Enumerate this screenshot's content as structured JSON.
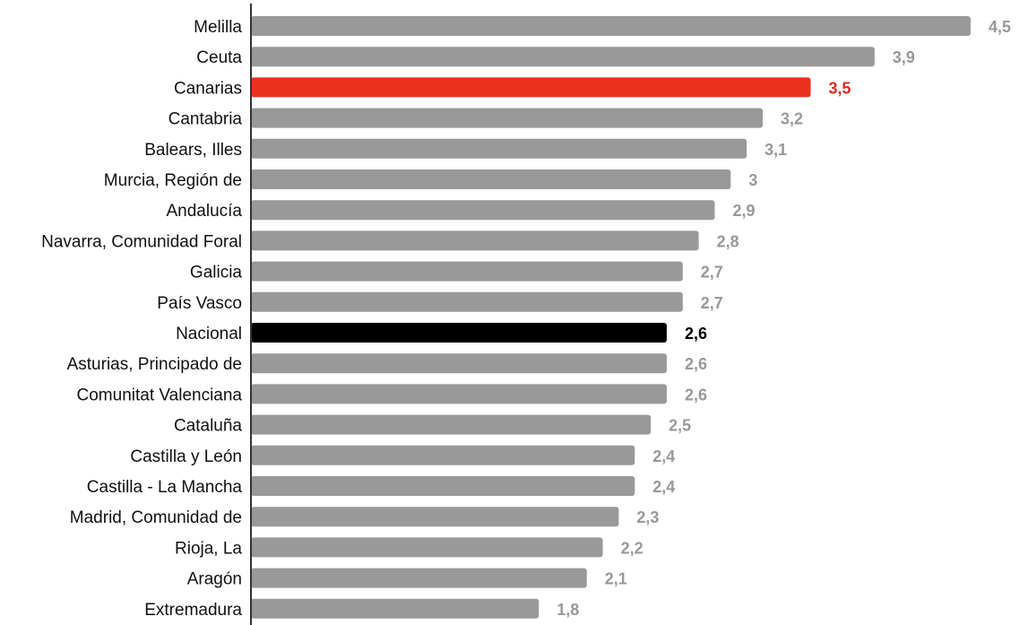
{
  "chart_data": {
    "type": "bar",
    "orientation": "horizontal",
    "categories": [
      "Melilla",
      "Ceuta",
      "Canarias",
      "Cantabria",
      "Balears, Illes",
      "Murcia, Región de",
      "Andalucía",
      "Navarra, Comunidad Foral",
      "Galicia",
      "País Vasco",
      "Nacional",
      "Asturias, Principado de",
      "Comunitat Valenciana",
      "Cataluña",
      "Castilla y León",
      "Castilla - La Mancha",
      "Madrid, Comunidad de",
      "Rioja, La",
      "Aragón",
      "Extremadura"
    ],
    "values": [
      4.5,
      3.9,
      3.5,
      3.2,
      3.1,
      3,
      2.9,
      2.8,
      2.7,
      2.7,
      2.6,
      2.6,
      2.6,
      2.5,
      2.4,
      2.4,
      2.3,
      2.2,
      2.1,
      1.8
    ],
    "value_labels": [
      "4,5",
      "3,9",
      "3,5",
      "3,2",
      "3,1",
      "3",
      "2,9",
      "2,8",
      "2,7",
      "2,7",
      "2,6",
      "2,6",
      "2,6",
      "2,5",
      "2,4",
      "2,4",
      "2,3",
      "2,2",
      "2,1",
      "1,8"
    ],
    "xlim": [
      0,
      4.5
    ],
    "grid": false,
    "legend": "none",
    "colors": {
      "default_bar": "#999999",
      "default_label": "#999999",
      "highlight_bar": "#e8321e",
      "highlight_label": "#d92b1b",
      "national_bar": "#000000",
      "national_label": "#000000",
      "axis": "#333333"
    },
    "highlights": {
      "Canarias": "highlight",
      "Nacional": "national"
    }
  }
}
